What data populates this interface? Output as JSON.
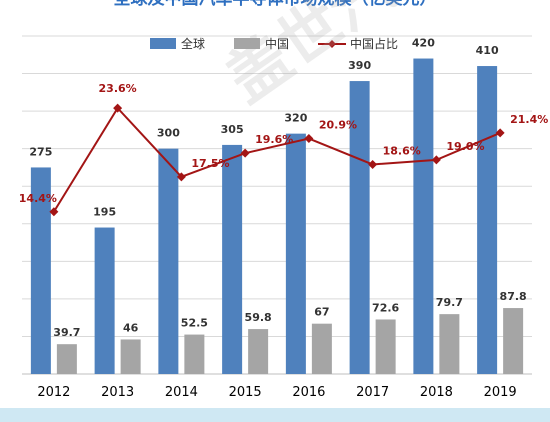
{
  "chart_data": {
    "type": "bar",
    "title": "全球及中国汽车半导体市场规模（亿美元）",
    "categories": [
      "2012",
      "2013",
      "2014",
      "2015",
      "2016",
      "2017",
      "2018",
      "2019"
    ],
    "series": [
      {
        "name": "全球",
        "type": "bar",
        "values": [
          275,
          195,
          300,
          305,
          320,
          390,
          420,
          410
        ],
        "labels": [
          "275",
          "195",
          "300",
          "305",
          "320",
          "390",
          "420",
          "410"
        ]
      },
      {
        "name": "中国",
        "type": "bar",
        "values": [
          39.7,
          46,
          52.5,
          59.8,
          67,
          72.6,
          79.7,
          87.8
        ],
        "labels": [
          "39.7",
          "46",
          "52.5",
          "59.8",
          "67",
          "72.6",
          "79.7",
          "87.8"
        ]
      },
      {
        "name": "中国占比",
        "type": "line",
        "values": [
          14.4,
          23.6,
          17.5,
          19.6,
          20.9,
          18.6,
          19.0,
          21.4
        ],
        "labels": [
          "14.4%",
          "23.6%",
          "17.5%",
          "19.6%",
          "20.9%",
          "18.6%",
          "19.0%",
          "21.4%"
        ]
      }
    ],
    "ylim": [
      0,
      450
    ],
    "y2lim": [
      0,
      30
    ],
    "grid": true,
    "legend": "top-right"
  },
  "colors": {
    "global": "#4f81bd",
    "china": "#a5a5a5",
    "share": "#a31515",
    "grid": "#d9d9d9",
    "axis_text": "#000000",
    "title": "#2e6fc0",
    "footer": "#cfe8f3"
  },
  "watermark": "盖世汽车 Gasgoo"
}
